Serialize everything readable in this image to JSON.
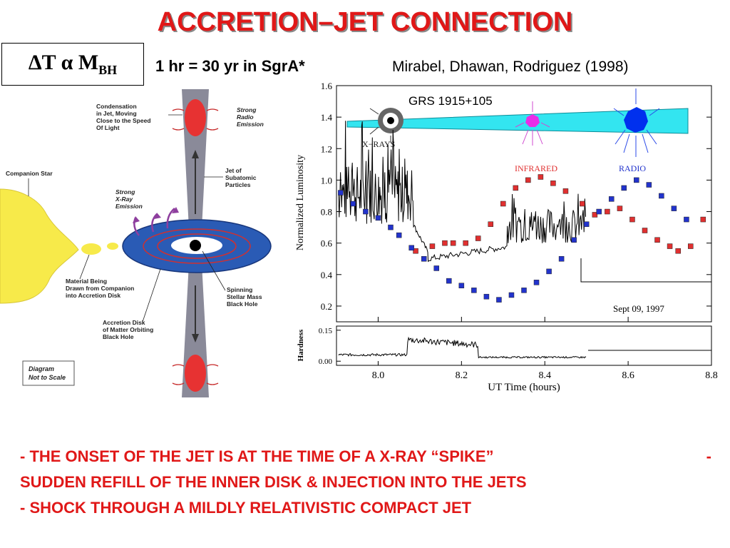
{
  "slide": {
    "title": "ACCRETION–JET CONNECTION",
    "formula": {
      "lhs": "ΔT",
      "rel": "α",
      "rhs": "M",
      "sub": "BH"
    },
    "scale_note": "1 hr = 30 yr in SgrA*",
    "citation": "Mirabel, Dhawan, Rodriguez (1998",
    "citation_close": ")",
    "bullets": {
      "line1": "- THE ONSET OF THE JET IS AT THE TIME OF A X-RAY “SPIKE”",
      "line1_tail": "-",
      "line2": "SUDDEN REFILL OF THE INNER DISK & INJECTION INTO THE JETS",
      "line3": "- SHOCK THROUGH A MILDLY RELATIVISTIC COMPACT JET"
    }
  },
  "diagram": {
    "labels": {
      "condensation": [
        "Condensation",
        "in Jet, Moving",
        "Close to the Speed",
        "Of Light"
      ],
      "strong_radio": [
        "Strong",
        "Radio",
        "Emission"
      ],
      "companion": "Companion Star",
      "jet": [
        "Jet of",
        "Subatomic",
        "Particles"
      ],
      "strong_xray": [
        "Strong",
        "X-Ray",
        "Emission"
      ],
      "material": [
        "Material Being",
        "Drawn from Companion",
        "into Accretion Disk"
      ],
      "spinning": [
        "Spinning",
        "Stellar Mass",
        "Black Hole"
      ],
      "accretion": [
        "Accretion Disk",
        "of Matter Orbiting",
        "Black Hole"
      ],
      "not_to_scale": [
        "Diagram",
        "Not to Scale"
      ]
    }
  },
  "chart_data": {
    "type": "scatter",
    "title": "GRS 1915+105",
    "date_label": "Sept 09, 1997",
    "xlabel": "UT Time (hours)",
    "ylabel": "Normalized Luminosity",
    "ylabel_bottom": "Hardness",
    "xlim": [
      7.9,
      8.8
    ],
    "ylim": [
      0.1,
      1.6
    ],
    "ylim_bottom": [
      -0.02,
      0.17
    ],
    "x_ticks": [
      "8.0",
      "8.2",
      "8.4",
      "8.6",
      "8.8"
    ],
    "y_ticks": [
      "1.6",
      "1.4",
      "1.2",
      "1.0",
      "0.8",
      "0.6",
      "0.4",
      "0.2"
    ],
    "y_ticks_bottom": [
      "0.15",
      "0.00"
    ],
    "inset_labels": {
      "xrays": "X−RAYS",
      "infrared": "INFRARED",
      "radio": "RADIO"
    },
    "series": [
      {
        "name": "INFRARED",
        "color": "#e03030",
        "x": [
          8.09,
          8.13,
          8.16,
          8.18,
          8.21,
          8.24,
          8.27,
          8.3,
          8.33,
          8.36,
          8.39,
          8.42,
          8.45,
          8.49,
          8.52,
          8.55,
          8.58,
          8.61,
          8.64,
          8.67,
          8.7,
          8.72,
          8.75,
          8.78
        ],
        "y": [
          0.55,
          0.58,
          0.6,
          0.6,
          0.6,
          0.63,
          0.72,
          0.85,
          0.95,
          1.0,
          1.02,
          0.98,
          0.93,
          0.85,
          0.78,
          0.8,
          0.82,
          0.75,
          0.68,
          0.62,
          0.58,
          0.55,
          0.58,
          0.75
        ]
      },
      {
        "name": "RADIO",
        "color": "#2233cc",
        "x": [
          7.91,
          7.94,
          7.97,
          8.0,
          8.03,
          8.05,
          8.08,
          8.11,
          8.14,
          8.17,
          8.2,
          8.23,
          8.26,
          8.29,
          8.32,
          8.35,
          8.38,
          8.41,
          8.44,
          8.47,
          8.5,
          8.53,
          8.56,
          8.59,
          8.62,
          8.65,
          8.68,
          8.71,
          8.74
        ],
        "y": [
          0.92,
          0.85,
          0.8,
          0.76,
          0.7,
          0.65,
          0.57,
          0.5,
          0.44,
          0.36,
          0.33,
          0.3,
          0.26,
          0.24,
          0.27,
          0.3,
          0.35,
          0.42,
          0.5,
          0.62,
          0.72,
          0.8,
          0.88,
          0.95,
          1.0,
          0.97,
          0.9,
          0.82,
          0.75
        ]
      }
    ]
  }
}
